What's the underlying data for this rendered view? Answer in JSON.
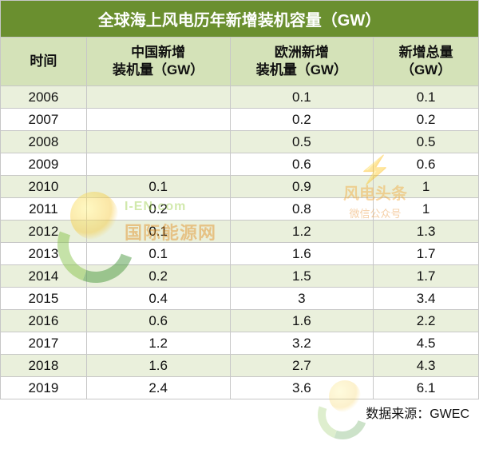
{
  "table": {
    "type": "table",
    "title": "全球海上风电历年新增装机容量（GW）",
    "title_bg": "#6a8f2f",
    "title_color": "#ffffff",
    "title_fontsize": 20,
    "header_bg": "#d4e2b8",
    "header_color": "#111111",
    "header_fontsize": 17,
    "row_odd_bg": "#eaf0dc",
    "row_even_bg": "#ffffff",
    "cell_color": "#111111",
    "cell_fontsize": 17,
    "border_color": "#c7c7c7",
    "column_widths_pct": [
      18,
      30,
      30,
      22
    ],
    "columns": [
      {
        "label": "时间",
        "align": "center"
      },
      {
        "label_line1": "中国新增",
        "label_line2": "装机量（GW）",
        "align": "center"
      },
      {
        "label_line1": "欧洲新增",
        "label_line2": "装机量（GW）",
        "align": "center"
      },
      {
        "label_line1": "新增总量",
        "label_line2": "（GW）",
        "align": "center"
      }
    ],
    "rows": [
      {
        "year": "2006",
        "china": "",
        "europe": "0.1",
        "total": "0.1"
      },
      {
        "year": "2007",
        "china": "",
        "europe": "0.2",
        "total": "0.2"
      },
      {
        "year": "2008",
        "china": "",
        "europe": "0.5",
        "total": "0.5"
      },
      {
        "year": "2009",
        "china": "",
        "europe": "0.6",
        "total": "0.6"
      },
      {
        "year": "2010",
        "china": "0.1",
        "europe": "0.9",
        "total": "1"
      },
      {
        "year": "2011",
        "china": "0.2",
        "europe": "0.8",
        "total": "1"
      },
      {
        "year": "2012",
        "china": "0.1",
        "europe": "1.2",
        "total": "1.3"
      },
      {
        "year": "2013",
        "china": "0.1",
        "europe": "1.6",
        "total": "1.7"
      },
      {
        "year": "2014",
        "china": "0.2",
        "europe": "1.5",
        "total": "1.7"
      },
      {
        "year": "2015",
        "china": "0.4",
        "europe": "3",
        "total": "3.4"
      },
      {
        "year": "2016",
        "china": "0.6",
        "europe": "1.6",
        "total": "2.2"
      },
      {
        "year": "2017",
        "china": "1.2",
        "europe": "3.2",
        "total": "4.5"
      },
      {
        "year": "2018",
        "china": "1.6",
        "europe": "2.7",
        "total": "4.3"
      },
      {
        "year": "2019",
        "china": "2.4",
        "europe": "3.6",
        "total": "6.1"
      }
    ]
  },
  "source": {
    "text": "数据来源：GWEC",
    "color": "#111111",
    "fontsize": 16
  },
  "watermarks": {
    "left": {
      "line1": "I-EN.com",
      "line2": "国际能源网"
    },
    "right": {
      "bolt": "⚡",
      "line1": "风电头条",
      "line2": "微信公众号"
    }
  }
}
